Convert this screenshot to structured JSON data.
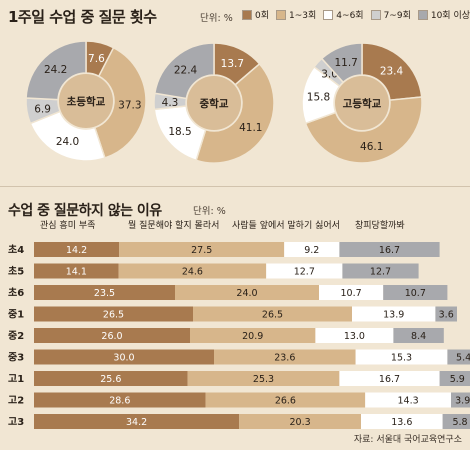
{
  "top": {
    "title": "1주일 수업 중 질문 횟수",
    "unit": "단위: %",
    "legend": [
      {
        "label": "0회",
        "color": "#a87a4f"
      },
      {
        "label": "1~3회",
        "color": "#d7b68b"
      },
      {
        "label": "4~6회",
        "color": "#ffffff"
      },
      {
        "label": "7~9회",
        "color": "#cfcfcf"
      },
      {
        "label": "10회 이상",
        "color": "#a8a9ad"
      }
    ]
  },
  "bottom": {
    "title": "수업 중 질문하지 않는 이유",
    "unit": "단위: %",
    "source": "자료: 서울대 국어교육연구소"
  },
  "chart_data": [
    {
      "type": "pie",
      "title": "초등학교",
      "categories": [
        "0회",
        "1~3회",
        "4~6회",
        "7~9회",
        "10회 이상"
      ],
      "values": [
        7.6,
        37.3,
        24.0,
        6.9,
        24.2
      ]
    },
    {
      "type": "pie",
      "title": "중학교",
      "categories": [
        "0회",
        "1~3회",
        "4~6회",
        "7~9회",
        "10회 이상"
      ],
      "values": [
        13.7,
        41.1,
        18.5,
        4.3,
        22.4
      ]
    },
    {
      "type": "pie",
      "title": "고등학교",
      "categories": [
        "0회",
        "1~3회",
        "4~6회",
        "7~9회",
        "10회 이상"
      ],
      "values": [
        23.4,
        46.1,
        15.8,
        3.0,
        11.7
      ]
    },
    {
      "type": "bar",
      "stacked": true,
      "orientation": "horizontal",
      "categories": [
        "초4",
        "초5",
        "초6",
        "중1",
        "중2",
        "중3",
        "고1",
        "고2",
        "고3"
      ],
      "series": [
        {
          "name": "관심 흥미 부족",
          "color": "#a87a4f",
          "values": [
            14.2,
            14.1,
            23.5,
            26.5,
            26.0,
            30.0,
            25.6,
            28.6,
            34.2
          ]
        },
        {
          "name": "뭘 질문해야 할지 몰라서",
          "color": "#d7b68b",
          "values": [
            27.5,
            24.6,
            24.0,
            26.5,
            20.9,
            23.6,
            25.3,
            26.6,
            20.3
          ]
        },
        {
          "name": "사람들 앞에서 말하기 싫어서",
          "color": "#ffffff",
          "values": [
            9.2,
            12.7,
            10.7,
            13.9,
            13.0,
            15.3,
            16.7,
            14.3,
            13.6
          ]
        },
        {
          "name": "창피당할까봐",
          "color": "#a8a9ad",
          "values": [
            16.7,
            12.7,
            10.7,
            3.6,
            8.4,
            5.4,
            5.9,
            3.9,
            5.8
          ]
        }
      ]
    }
  ]
}
